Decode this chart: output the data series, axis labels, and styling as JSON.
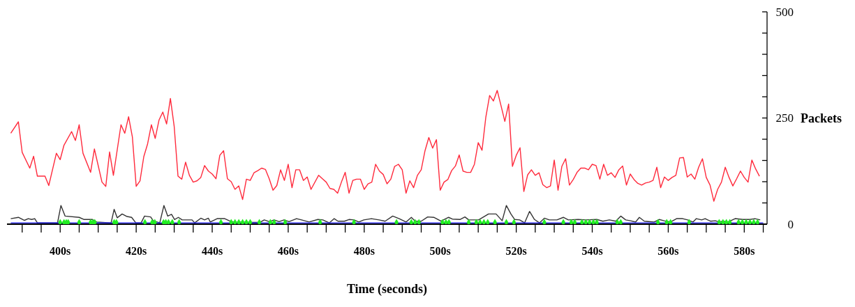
{
  "chart_data": {
    "type": "line",
    "xlabel": "Time (seconds)",
    "ylabel": "Packets",
    "xlim": [
      386,
      586
    ],
    "ylim": [
      0,
      500
    ],
    "xticks": [
      {
        "value": 390,
        "label": null
      },
      {
        "value": 395,
        "label": null
      },
      {
        "value": 400,
        "label": "400s"
      },
      {
        "value": 405,
        "label": null
      },
      {
        "value": 410,
        "label": null
      },
      {
        "value": 415,
        "label": null
      },
      {
        "value": 420,
        "label": "420s"
      },
      {
        "value": 425,
        "label": null
      },
      {
        "value": 430,
        "label": null
      },
      {
        "value": 435,
        "label": null
      },
      {
        "value": 440,
        "label": "440s"
      },
      {
        "value": 445,
        "label": null
      },
      {
        "value": 450,
        "label": null
      },
      {
        "value": 455,
        "label": null
      },
      {
        "value": 460,
        "label": "460s"
      },
      {
        "value": 465,
        "label": null
      },
      {
        "value": 470,
        "label": null
      },
      {
        "value": 475,
        "label": null
      },
      {
        "value": 480,
        "label": "480s"
      },
      {
        "value": 485,
        "label": null
      },
      {
        "value": 490,
        "label": null
      },
      {
        "value": 495,
        "label": null
      },
      {
        "value": 500,
        "label": "500s"
      },
      {
        "value": 505,
        "label": null
      },
      {
        "value": 510,
        "label": null
      },
      {
        "value": 515,
        "label": null
      },
      {
        "value": 520,
        "label": "520s"
      },
      {
        "value": 525,
        "label": null
      },
      {
        "value": 530,
        "label": null
      },
      {
        "value": 535,
        "label": null
      },
      {
        "value": 540,
        "label": "540s"
      },
      {
        "value": 545,
        "label": null
      },
      {
        "value": 550,
        "label": null
      },
      {
        "value": 555,
        "label": null
      },
      {
        "value": 560,
        "label": "560s"
      },
      {
        "value": 565,
        "label": null
      },
      {
        "value": 570,
        "label": null
      },
      {
        "value": 575,
        "label": null
      },
      {
        "value": 580,
        "label": "580s"
      },
      {
        "value": 585,
        "label": null
      }
    ],
    "yticks": [
      0,
      {
        "value": 50,
        "label": null
      },
      {
        "value": 100,
        "label": null
      },
      {
        "value": 150,
        "label": null
      },
      {
        "value": 200,
        "label": null
      },
      250,
      {
        "value": 300,
        "label": null
      },
      {
        "value": 350,
        "label": null
      },
      {
        "value": 400,
        "label": null
      },
      {
        "value": 450,
        "label": null
      },
      500
    ],
    "series": [
      {
        "color": "#ff2a3c",
        "x": [
          387,
          389,
          390,
          392,
          393,
          394,
          396,
          397,
          399,
          400,
          401,
          403,
          404,
          405,
          406,
          408,
          409,
          411,
          412,
          413,
          414,
          416,
          417,
          418,
          419,
          420,
          421,
          422,
          423,
          424,
          425,
          426,
          427,
          428,
          429,
          430,
          431,
          432,
          433,
          434,
          435,
          436,
          437,
          438,
          439,
          440,
          441,
          442,
          443,
          444,
          445,
          446,
          447,
          448,
          449,
          450,
          451,
          452,
          453,
          454,
          455,
          456,
          457,
          458,
          459,
          460,
          461,
          462,
          463,
          464,
          465,
          466,
          468,
          469,
          470,
          471,
          472,
          473,
          474,
          475,
          476,
          477,
          478,
          479,
          480,
          481,
          482,
          483,
          484,
          485,
          486,
          487,
          488,
          489,
          490,
          491,
          492,
          493,
          494,
          495,
          496,
          497,
          498,
          499,
          500,
          501,
          502,
          503,
          504,
          505,
          506,
          507,
          508,
          509,
          510,
          511,
          512,
          513,
          514,
          515,
          516,
          517,
          518,
          519,
          520,
          521,
          522,
          523,
          524,
          525,
          526,
          527,
          528,
          529,
          530,
          531,
          532,
          533,
          534,
          535,
          536,
          537,
          538,
          539,
          540,
          541,
          542,
          543,
          544,
          545,
          546,
          547,
          548,
          549,
          550,
          551,
          552,
          553,
          554,
          555,
          556,
          557,
          558,
          559,
          560,
          561,
          562,
          563,
          564,
          565,
          566,
          567,
          568,
          569,
          570,
          571,
          572,
          573,
          574,
          575,
          576,
          577,
          578,
          579,
          580,
          581,
          582,
          583,
          584
        ],
        "values": [
          214,
          241,
          169,
          132,
          160,
          113,
          113,
          91,
          167,
          152,
          186,
          218,
          197,
          234,
          167,
          122,
          177,
          99,
          89,
          170,
          115,
          234,
          214,
          253,
          205,
          89,
          102,
          159,
          189,
          234,
          202,
          245,
          264,
          236,
          296,
          230,
          113,
          106,
          146,
          115,
          99,
          102,
          110,
          138,
          125,
          118,
          107,
          162,
          173,
          107,
          100,
          82,
          90,
          58,
          106,
          103,
          121,
          126,
          132,
          129,
          107,
          80,
          91,
          128,
          103,
          141,
          86,
          128,
          128,
          103,
          111,
          82,
          115,
          107,
          99,
          84,
          82,
          73,
          99,
          122,
          73,
          103,
          106,
          106,
          82,
          95,
          99,
          141,
          125,
          117,
          95,
          106,
          136,
          141,
          128,
          73,
          102,
          86,
          115,
          128,
          173,
          204,
          179,
          199,
          80,
          99,
          105,
          126,
          137,
          163,
          125,
          122,
          122,
          141,
          192,
          174,
          252,
          303,
          290,
          315,
          279,
          242,
          283,
          136,
          162,
          180,
          77,
          116,
          128,
          115,
          121,
          93,
          86,
          90,
          151,
          80,
          136,
          154,
          92,
          105,
          122,
          132,
          132,
          128,
          141,
          138,
          106,
          141,
          115,
          121,
          110,
          128,
          137,
          92,
          118,
          105,
          96,
          92,
          97,
          99,
          103,
          134,
          86,
          111,
          103,
          110,
          115,
          156,
          157,
          111,
          118,
          106,
          134,
          154,
          110,
          92,
          54,
          82,
          99,
          134,
          110,
          90,
          107,
          125,
          110,
          99,
          151,
          130,
          113
        ]
      },
      {
        "color": "#333333",
        "x": [
          387,
          389,
          390.6,
          391.6,
          392.5,
          393.3,
          394,
          399.3,
          400.2,
          401.3,
          405,
          406.3,
          408.5,
          409.6,
          413.4,
          414.2,
          415,
          416.3,
          417.6,
          418.8,
          419.9,
          421.3,
          422.2,
          423.8,
          424.5,
          426.2,
          427.3,
          428.3,
          429.3,
          430.1,
          431.1,
          432.1,
          434.7,
          435.4,
          437,
          438,
          439,
          439.5,
          441.3,
          443.3,
          444.5,
          446,
          448,
          450,
          452.5,
          453.7,
          455,
          456.3,
          457.6,
          458.9,
          460.2,
          462.2,
          463.5,
          465.5,
          467.8,
          469.1,
          470.8,
          472.1,
          473.1,
          474.8,
          476,
          477.3,
          478.6,
          479.9,
          481.9,
          483.9,
          485.5,
          487.5,
          489.2,
          491,
          492.4,
          493.4,
          495,
          496.7,
          498.3,
          499,
          500.2,
          502.2,
          503.2,
          505.2,
          506.5,
          507.5,
          510.1,
          511.4,
          512.7,
          514.7,
          516.3,
          517.4,
          518.6,
          519.6,
          520.9,
          522.2,
          523.5,
          524.8,
          526.1,
          527.4,
          528.7,
          530.7,
          532.4,
          533.7,
          536.3,
          538.3,
          541.2,
          542.8,
          544.5,
          546.2,
          547.5,
          548.8,
          550.1,
          551.4,
          552.4,
          553.7,
          556.3,
          557.6,
          558.9,
          560.6,
          562.2,
          563.8,
          565.1,
          566.5,
          567.4,
          568.8,
          569.7,
          571.1,
          572.4,
          573.4,
          574.4,
          575.7,
          577.6,
          579.6,
          581.5,
          582.8,
          584.2
        ],
        "values": [
          13,
          16,
          9,
          13,
          11,
          13,
          3,
          3,
          44,
          19,
          16,
          11,
          11,
          5,
          3,
          35,
          15,
          24,
          18,
          16,
          3,
          3,
          19,
          17,
          8,
          3,
          44,
          19,
          23,
          11,
          16,
          10,
          10,
          3,
          14,
          10,
          14,
          5,
          13,
          13,
          8,
          4,
          5,
          4,
          4,
          10,
          6,
          10,
          6,
          10,
          6,
          13,
          10,
          5,
          11,
          10,
          3,
          13,
          7,
          7,
          11,
          10,
          5,
          10,
          13,
          10,
          7,
          19,
          13,
          5,
          16,
          7,
          7,
          17,
          16,
          13,
          7,
          16,
          12,
          11,
          17,
          10,
          10,
          17,
          24,
          24,
          8,
          44,
          24,
          11,
          10,
          3,
          30,
          11,
          3,
          14,
          10,
          10,
          16,
          10,
          11,
          10,
          11,
          7,
          10,
          7,
          19,
          10,
          8,
          5,
          16,
          7,
          5,
          11,
          8,
          5,
          13,
          13,
          10,
          5,
          13,
          10,
          13,
          7,
          8,
          5,
          7,
          5,
          13,
          11,
          11,
          13,
          10
        ]
      },
      {
        "color": "#1a1aff",
        "x": [
          387,
          585
        ],
        "values": [
          3,
          3
        ]
      },
      {
        "type": "scatter",
        "color": "#22ee22",
        "marker": "diamond",
        "x": [
          400,
          401,
          401.6,
          402.1,
          405,
          408,
          408.6,
          409.1,
          414.2,
          414.8,
          422.3,
          424.2,
          424.9,
          427.2,
          427.8,
          428.5,
          429.5,
          431.3,
          442.3,
          445,
          446,
          447,
          448,
          449,
          450,
          452.4,
          455.3,
          456.3,
          459.2,
          468.4,
          477.3,
          488.5,
          492.4,
          493.4,
          494.4,
          500.6,
          501.5,
          502.3,
          507.5,
          509.5,
          510.5,
          511.5,
          512.5,
          514.4,
          517.4,
          519.4,
          527.4,
          532.4,
          534.5,
          535.4,
          537.3,
          538.3,
          539.3,
          540.3,
          541.2,
          546.6,
          547.5,
          557.3,
          559.6,
          560.6,
          565.5,
          573.4,
          574.4,
          575.3,
          576.2,
          578.5,
          579.5,
          580.5,
          581.5,
          582.5,
          583.5
        ],
        "values": [
          4,
          4,
          4,
          4,
          4,
          4,
          4,
          4,
          4,
          4,
          4,
          4,
          4,
          4,
          4,
          4,
          4,
          4,
          4,
          4,
          4,
          4,
          4,
          4,
          4,
          4,
          4,
          4,
          4,
          4,
          4,
          4,
          4,
          4,
          4,
          4,
          4,
          4,
          4,
          4,
          4,
          4,
          4,
          4,
          4,
          4,
          4,
          4,
          4,
          4,
          4,
          4,
          4,
          4,
          4,
          4,
          4,
          4,
          4,
          4,
          4,
          4,
          4,
          4,
          4,
          4,
          4,
          4,
          4,
          4,
          4
        ]
      }
    ]
  }
}
